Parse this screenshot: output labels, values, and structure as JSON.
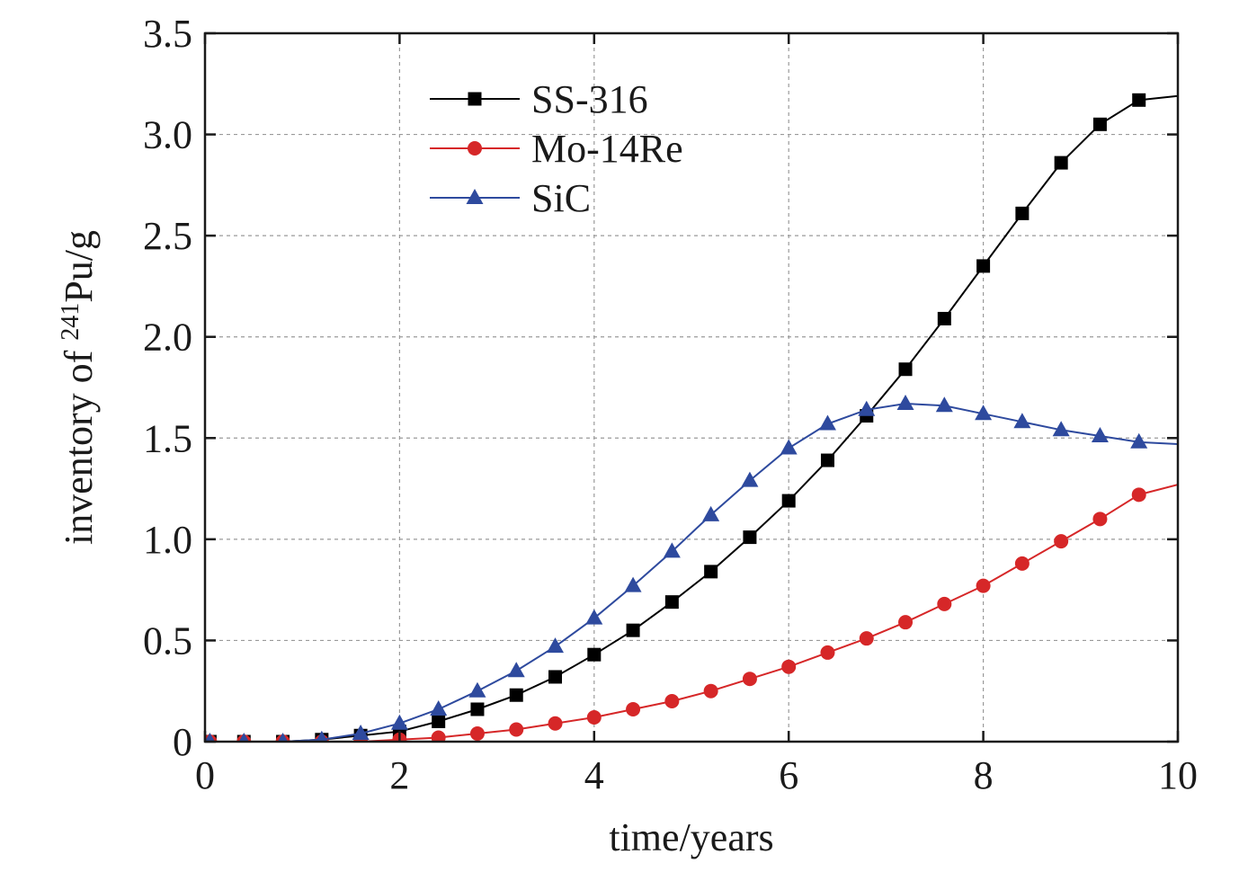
{
  "chart_data": {
    "type": "line",
    "xlabel": "time/years",
    "ylabel_prefix": "inventory of ",
    "ylabel_superscript": "241",
    "ylabel_suffix": "Pu/g",
    "xlim": [
      0,
      10
    ],
    "ylim": [
      0,
      3.5
    ],
    "xticks": [
      0,
      2,
      4,
      6,
      8,
      10
    ],
    "xtick_labels": [
      "0",
      "2",
      "4",
      "6",
      "8",
      "10"
    ],
    "yticks": [
      0,
      0.5,
      1.0,
      1.5,
      2.0,
      2.5,
      3.0,
      3.5
    ],
    "ytick_labels": [
      "0",
      "0.5",
      "1.0",
      "1.5",
      "2.0",
      "2.5",
      "3.0",
      "3.5"
    ],
    "grid": true,
    "legend_position": "top-center",
    "x": [
      0.05,
      0.4,
      0.8,
      1.2,
      1.6,
      2.0,
      2.4,
      2.8,
      3.2,
      3.6,
      4.0,
      4.4,
      4.8,
      5.2,
      5.6,
      6.0,
      6.4,
      6.8,
      7.2,
      7.6,
      8.0,
      8.4,
      8.8,
      9.2,
      9.6,
      10.0
    ],
    "series": [
      {
        "name": "SS-316",
        "color": "#000000",
        "marker": "square",
        "values": [
          0.0,
          0.0,
          0.0,
          0.01,
          0.03,
          0.05,
          0.1,
          0.16,
          0.23,
          0.32,
          0.43,
          0.55,
          0.69,
          0.84,
          1.01,
          1.19,
          1.39,
          1.61,
          1.84,
          2.09,
          2.35,
          2.61,
          2.86,
          3.05,
          3.17,
          3.19
        ]
      },
      {
        "name": "Mo-14Re",
        "color": "#d62728",
        "marker": "circle",
        "values": [
          0.0,
          0.0,
          0.0,
          0.0,
          0.0,
          0.01,
          0.02,
          0.04,
          0.06,
          0.09,
          0.12,
          0.16,
          0.2,
          0.25,
          0.31,
          0.37,
          0.44,
          0.51,
          0.59,
          0.68,
          0.77,
          0.88,
          0.99,
          1.1,
          1.22,
          1.27
        ]
      },
      {
        "name": "SiC",
        "color": "#2e4a9e",
        "marker": "triangle",
        "values": [
          0.0,
          0.0,
          0.0,
          0.01,
          0.04,
          0.09,
          0.16,
          0.25,
          0.35,
          0.47,
          0.61,
          0.77,
          0.94,
          1.12,
          1.29,
          1.45,
          1.57,
          1.64,
          1.67,
          1.66,
          1.62,
          1.58,
          1.54,
          1.51,
          1.48,
          1.47
        ]
      }
    ]
  }
}
